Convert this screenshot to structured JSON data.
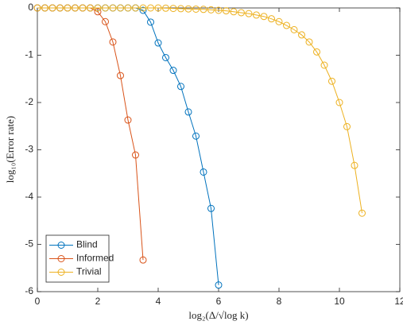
{
  "chart_data": {
    "type": "line",
    "xlabel": "log₂(Δ/√log k)",
    "ylabel": "log₁₀(Error rate)",
    "xlim": [
      0,
      12
    ],
    "xticks": [
      0,
      2,
      4,
      6,
      8,
      10,
      12
    ],
    "ylim": [
      -6,
      0
    ],
    "yticks": [
      -6,
      -5,
      -4,
      -3,
      -2,
      -1,
      0
    ],
    "legend": "lower left",
    "series": [
      {
        "name": "Blind",
        "color": "#0072bd",
        "x": [
          0,
          0.25,
          0.5,
          0.75,
          1,
          1.25,
          1.5,
          1.75,
          2,
          2.25,
          2.5,
          2.75,
          3,
          3.25,
          3.5,
          3.75,
          4,
          4.25,
          4.5,
          4.75,
          5,
          5.25,
          5.5,
          5.75,
          6
        ],
        "values": [
          0,
          0,
          0,
          0,
          0,
          0,
          0,
          0,
          0,
          0,
          0,
          0,
          0,
          0,
          -0.05,
          -0.3,
          -0.74,
          -1.05,
          -1.32,
          -1.66,
          -2.2,
          -2.71,
          -3.47,
          -4.24,
          -5.86
        ]
      },
      {
        "name": "Informed",
        "color": "#d95319",
        "x": [
          0,
          0.25,
          0.5,
          0.75,
          1,
          1.25,
          1.5,
          1.75,
          2,
          2.25,
          2.5,
          2.75,
          3,
          3.25,
          3.5
        ],
        "values": [
          0,
          0,
          0,
          0,
          0,
          0,
          0,
          0,
          -0.08,
          -0.29,
          -0.72,
          -1.43,
          -2.37,
          -3.11,
          -5.33
        ]
      },
      {
        "name": "Trivial",
        "color": "#edb120",
        "x": [
          0,
          0.25,
          0.5,
          0.75,
          1,
          1.25,
          1.5,
          1.75,
          2,
          2.25,
          2.5,
          2.75,
          3,
          3.25,
          3.5,
          3.75,
          4,
          4.25,
          4.5,
          4.75,
          5,
          5.25,
          5.5,
          5.75,
          6,
          6.25,
          6.5,
          6.75,
          7,
          7.25,
          7.5,
          7.75,
          8,
          8.25,
          8.5,
          8.75,
          9,
          9.25,
          9.5,
          9.75,
          10,
          10.25,
          10.5,
          10.75
        ],
        "values": [
          0,
          0,
          0,
          0,
          0,
          0,
          0,
          0,
          0,
          0,
          0,
          0,
          0,
          0,
          0,
          0,
          0,
          -0.005,
          -0.01,
          -0.015,
          -0.02,
          -0.025,
          -0.03,
          -0.04,
          -0.05,
          -0.06,
          -0.08,
          -0.1,
          -0.12,
          -0.15,
          -0.18,
          -0.23,
          -0.29,
          -0.37,
          -0.46,
          -0.57,
          -0.72,
          -0.93,
          -1.21,
          -1.55,
          -2.0,
          -2.51,
          -3.33,
          -4.34
        ]
      }
    ]
  }
}
